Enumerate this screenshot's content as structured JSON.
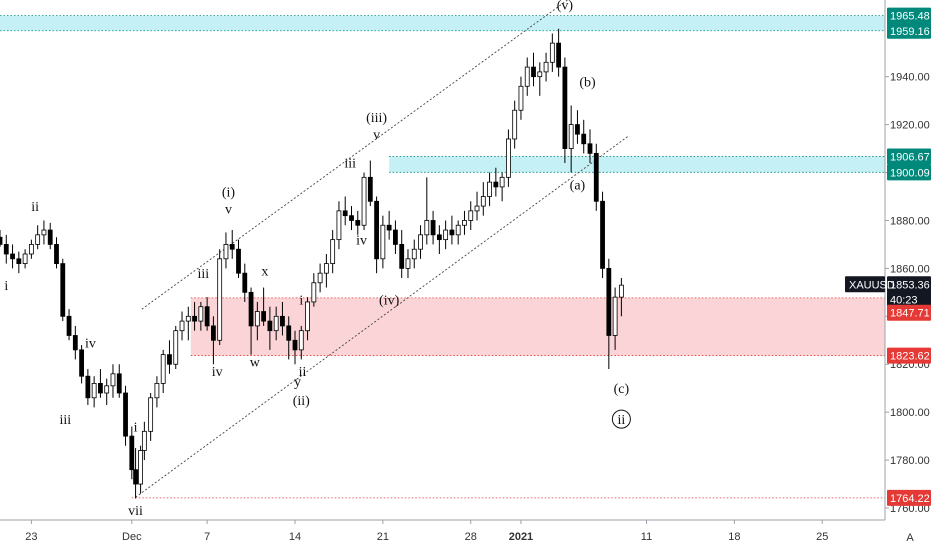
{
  "chart_data": {
    "type": "candlestick",
    "symbol": "XAUUSD",
    "colors": {
      "candle": "#000000",
      "resistance_zone": "#b2ebf2",
      "support_zone": "#f8c5c8",
      "teal_badge": "#00897b",
      "red_badge": "#e53935",
      "dark_badge": "#131722",
      "channel": "#444444"
    },
    "y_axis": {
      "ticks": [
        "1760.00",
        "1780.00",
        "1800.00",
        "1820.00",
        "1840.00",
        "1860.00",
        "1880.00",
        "1900.00",
        "1920.00",
        "1940.00"
      ],
      "ylim": [
        1755,
        1972
      ]
    },
    "x_axis": {
      "labels": [
        {
          "text": "23",
          "day": 0
        },
        {
          "text": "Dec",
          "day": 8
        },
        {
          "text": "7",
          "day": 14
        },
        {
          "text": "14",
          "day": 21
        },
        {
          "text": "21",
          "day": 28
        },
        {
          "text": "28",
          "day": 35
        },
        {
          "text": "2021",
          "day": 39
        },
        {
          "text": "11",
          "day": 49
        },
        {
          "text": "18",
          "day": 56
        },
        {
          "text": "25",
          "day": 63
        }
      ],
      "xlim": [
        -2.5,
        68
      ]
    },
    "price_badges": [
      {
        "text": "1965.48",
        "price": 1965.48,
        "style": "teal"
      },
      {
        "text": "1959.16",
        "price": 1959.16,
        "style": "teal"
      },
      {
        "text": "1906.67",
        "price": 1906.67,
        "style": "teal"
      },
      {
        "text": "1900.09",
        "price": 1900.09,
        "style": "teal"
      },
      {
        "text": "1853.36",
        "price": 1853.36,
        "style": "dark",
        "tag": "XAUUSD"
      },
      {
        "text": "40:23",
        "price": 1847.0,
        "style": "dark"
      },
      {
        "text": "1847.71",
        "price": 1841.5,
        "style": "red"
      },
      {
        "text": "1823.62",
        "price": 1823.62,
        "style": "red"
      },
      {
        "text": "1764.22",
        "price": 1764.22,
        "style": "red"
      }
    ],
    "zones": [
      {
        "x0": -2.5,
        "x1": 68,
        "y0": 1959.16,
        "y1": 1965.48,
        "kind": "resistance"
      },
      {
        "x0": 28.5,
        "x1": 68,
        "y0": 1900.09,
        "y1": 1906.67,
        "kind": "resistance"
      },
      {
        "x0": 12.7,
        "x1": 68,
        "y0": 1823.62,
        "y1": 1847.71,
        "kind": "support"
      }
    ],
    "hlines": [
      {
        "x0": -2.5,
        "x1": 68,
        "y": 1965.48,
        "kind": "resistance"
      },
      {
        "x0": -2.5,
        "x1": 68,
        "y": 1959.16,
        "kind": "resistance"
      },
      {
        "x0": 28.5,
        "x1": 68,
        "y": 1906.67,
        "kind": "resistance"
      },
      {
        "x0": 28.5,
        "x1": 68,
        "y": 1900.09,
        "kind": "resistance"
      },
      {
        "x0": 12.7,
        "x1": 68,
        "y": 1847.71,
        "kind": "support"
      },
      {
        "x0": 12.7,
        "x1": 68,
        "y": 1823.62,
        "kind": "support"
      },
      {
        "x0": 8.0,
        "x1": 68,
        "y": 1764.22,
        "kind": "support"
      }
    ],
    "channel_lines": [
      {
        "x0": 8.3,
        "y0": 1764.5,
        "x1": 47.5,
        "y1": 1915.0
      },
      {
        "x0": 8.8,
        "y0": 1843.0,
        "x1": 43.5,
        "y1": 1975.0
      }
    ],
    "candles": [
      [
        -2.5,
        1873,
        1876,
        1869,
        1870
      ],
      [
        -2.0,
        1870,
        1874,
        1862,
        1866
      ],
      [
        -1.5,
        1866,
        1870,
        1860,
        1864
      ],
      [
        -1.0,
        1864,
        1867,
        1858,
        1862
      ],
      [
        -0.5,
        1862,
        1868,
        1860,
        1866
      ],
      [
        0.0,
        1866,
        1872,
        1864,
        1870
      ],
      [
        0.5,
        1870,
        1878,
        1868,
        1874
      ],
      [
        1.0,
        1874,
        1880,
        1870,
        1876
      ],
      [
        1.5,
        1876,
        1879,
        1868,
        1870
      ],
      [
        2.0,
        1870,
        1873,
        1860,
        1862
      ],
      [
        2.5,
        1862,
        1864,
        1838,
        1840
      ],
      [
        3.0,
        1840,
        1843,
        1830,
        1832
      ],
      [
        3.5,
        1832,
        1836,
        1822,
        1826
      ],
      [
        4.0,
        1826,
        1828,
        1812,
        1815
      ],
      [
        4.5,
        1815,
        1818,
        1803,
        1806
      ],
      [
        5.0,
        1806,
        1815,
        1802,
        1812
      ],
      [
        5.5,
        1812,
        1818,
        1806,
        1808
      ],
      [
        6.0,
        1808,
        1814,
        1803,
        1811
      ],
      [
        6.5,
        1811,
        1820,
        1806,
        1816
      ],
      [
        7.0,
        1816,
        1820,
        1806,
        1808
      ],
      [
        7.5,
        1808,
        1811,
        1786,
        1790
      ],
      [
        8.0,
        1790,
        1794,
        1772,
        1776
      ],
      [
        8.3,
        1776,
        1785,
        1764,
        1770
      ],
      [
        8.7,
        1770,
        1786,
        1766,
        1784
      ],
      [
        9.0,
        1784,
        1796,
        1780,
        1792
      ],
      [
        9.5,
        1792,
        1808,
        1788,
        1806
      ],
      [
        10.0,
        1806,
        1815,
        1802,
        1812
      ],
      [
        10.5,
        1812,
        1826,
        1808,
        1824
      ],
      [
        11.0,
        1824,
        1830,
        1816,
        1820
      ],
      [
        11.5,
        1820,
        1836,
        1818,
        1834
      ],
      [
        12.0,
        1834,
        1842,
        1830,
        1838
      ],
      [
        12.5,
        1838,
        1844,
        1830,
        1840
      ],
      [
        13.0,
        1840,
        1846,
        1834,
        1838
      ],
      [
        13.5,
        1838,
        1846,
        1834,
        1844
      ],
      [
        14.0,
        1844,
        1848,
        1834,
        1836
      ],
      [
        14.5,
        1836,
        1840,
        1820,
        1830
      ],
      [
        15.0,
        1830,
        1868,
        1828,
        1864
      ],
      [
        15.5,
        1864,
        1875,
        1860,
        1870
      ],
      [
        16.0,
        1870,
        1876,
        1864,
        1868
      ],
      [
        16.5,
        1868,
        1872,
        1856,
        1858
      ],
      [
        17.0,
        1858,
        1862,
        1846,
        1850
      ],
      [
        17.5,
        1850,
        1852,
        1824,
        1836
      ],
      [
        18.0,
        1836,
        1846,
        1830,
        1842
      ],
      [
        18.5,
        1842,
        1852,
        1836,
        1838
      ],
      [
        19.0,
        1838,
        1844,
        1826,
        1834
      ],
      [
        19.5,
        1834,
        1844,
        1830,
        1840
      ],
      [
        20.0,
        1840,
        1846,
        1832,
        1836
      ],
      [
        20.5,
        1836,
        1840,
        1822,
        1830
      ],
      [
        21.0,
        1830,
        1834,
        1820,
        1826
      ],
      [
        21.5,
        1826,
        1836,
        1822,
        1834
      ],
      [
        22.0,
        1834,
        1848,
        1830,
        1846
      ],
      [
        22.5,
        1846,
        1858,
        1844,
        1854
      ],
      [
        23.0,
        1854,
        1862,
        1850,
        1858
      ],
      [
        23.5,
        1858,
        1866,
        1852,
        1862
      ],
      [
        24.0,
        1862,
        1876,
        1858,
        1872
      ],
      [
        24.5,
        1872,
        1888,
        1868,
        1884
      ],
      [
        25.0,
        1884,
        1890,
        1878,
        1882
      ],
      [
        25.5,
        1882,
        1886,
        1876,
        1880
      ],
      [
        26.0,
        1880,
        1884,
        1874,
        1878
      ],
      [
        26.5,
        1878,
        1900,
        1876,
        1898
      ],
      [
        27.0,
        1898,
        1905,
        1886,
        1888
      ],
      [
        27.5,
        1888,
        1890,
        1858,
        1864
      ],
      [
        28.0,
        1864,
        1882,
        1860,
        1878
      ],
      [
        28.5,
        1878,
        1884,
        1872,
        1876
      ],
      [
        29.0,
        1876,
        1880,
        1866,
        1870
      ],
      [
        29.5,
        1870,
        1876,
        1856,
        1860
      ],
      [
        30.0,
        1860,
        1868,
        1856,
        1864
      ],
      [
        30.5,
        1864,
        1872,
        1860,
        1868
      ],
      [
        31.0,
        1868,
        1878,
        1864,
        1874
      ],
      [
        31.5,
        1874,
        1898,
        1870,
        1880
      ],
      [
        32.0,
        1880,
        1884,
        1870,
        1874
      ],
      [
        32.5,
        1874,
        1878,
        1866,
        1872
      ],
      [
        33.0,
        1872,
        1880,
        1868,
        1876
      ],
      [
        33.5,
        1876,
        1882,
        1870,
        1874
      ],
      [
        34.0,
        1874,
        1880,
        1870,
        1878
      ],
      [
        34.5,
        1878,
        1884,
        1874,
        1880
      ],
      [
        35.0,
        1880,
        1888,
        1876,
        1884
      ],
      [
        35.5,
        1884,
        1892,
        1880,
        1886
      ],
      [
        36.0,
        1886,
        1896,
        1882,
        1890
      ],
      [
        36.5,
        1890,
        1900,
        1886,
        1896
      ],
      [
        37.0,
        1896,
        1902,
        1890,
        1894
      ],
      [
        37.5,
        1894,
        1900,
        1888,
        1898
      ],
      [
        38.0,
        1898,
        1918,
        1894,
        1914
      ],
      [
        38.5,
        1914,
        1930,
        1910,
        1926
      ],
      [
        39.0,
        1926,
        1940,
        1922,
        1936
      ],
      [
        39.5,
        1936,
        1948,
        1932,
        1944
      ],
      [
        40.0,
        1944,
        1950,
        1936,
        1940
      ],
      [
        40.5,
        1940,
        1946,
        1932,
        1942
      ],
      [
        41.0,
        1942,
        1950,
        1938,
        1946
      ],
      [
        41.5,
        1946,
        1958,
        1942,
        1954
      ],
      [
        42.0,
        1954,
        1960,
        1940,
        1944
      ],
      [
        42.5,
        1944,
        1948,
        1904,
        1910
      ],
      [
        43.0,
        1910,
        1928,
        1900,
        1920
      ],
      [
        43.5,
        1920,
        1926,
        1912,
        1916
      ],
      [
        44.0,
        1916,
        1922,
        1908,
        1912
      ],
      [
        44.5,
        1912,
        1918,
        1904,
        1908
      ],
      [
        45.0,
        1908,
        1912,
        1884,
        1888
      ],
      [
        45.5,
        1888,
        1892,
        1856,
        1860
      ],
      [
        46.0,
        1860,
        1864,
        1818,
        1832
      ],
      [
        46.5,
        1832,
        1852,
        1826,
        1848
      ],
      [
        47.0,
        1848,
        1856,
        1840,
        1853
      ]
    ],
    "wave_labels": [
      {
        "text": "ii",
        "x": 0.3,
        "y": 1884
      },
      {
        "text": "i",
        "x": -2.0,
        "y": 1851
      },
      {
        "text": "iv",
        "x": 4.7,
        "y": 1827
      },
      {
        "text": "iii",
        "x": 2.7,
        "y": 1795
      },
      {
        "text": "i",
        "x": 8.3,
        "y": 1792
      },
      {
        "text": "vii",
        "x": 8.3,
        "y": 1757
      },
      {
        "text": "iii",
        "x": 13.7,
        "y": 1856
      },
      {
        "text": "(i)",
        "x": 15.7,
        "y": 1890
      },
      {
        "text": "v",
        "x": 15.7,
        "y": 1883
      },
      {
        "text": "iv",
        "x": 14.8,
        "y": 1815
      },
      {
        "text": "x",
        "x": 18.6,
        "y": 1857
      },
      {
        "text": "w",
        "x": 17.8,
        "y": 1819
      },
      {
        "text": "i",
        "x": 21.5,
        "y": 1845
      },
      {
        "text": "ii",
        "x": 21.6,
        "y": 1815
      },
      {
        "text": "y",
        "x": 21.2,
        "y": 1811
      },
      {
        "text": "(ii)",
        "x": 21.5,
        "y": 1803
      },
      {
        "text": "iii",
        "x": 25.4,
        "y": 1902
      },
      {
        "text": "iv",
        "x": 26.3,
        "y": 1870
      },
      {
        "text": "(iii)",
        "x": 27.5,
        "y": 1921
      },
      {
        "text": "v",
        "x": 27.5,
        "y": 1914
      },
      {
        "text": "(iv)",
        "x": 28.5,
        "y": 1845
      },
      {
        "text": "(v)",
        "x": 42.5,
        "y": 1968
      },
      {
        "text": "(b)",
        "x": 44.3,
        "y": 1936
      },
      {
        "text": "(a)",
        "x": 43.5,
        "y": 1893
      },
      {
        "text": "(c)",
        "x": 47.0,
        "y": 1808
      },
      {
        "text": "ii",
        "x": 47.0,
        "y": 1795,
        "circled": true
      }
    ],
    "watermark": "A"
  }
}
